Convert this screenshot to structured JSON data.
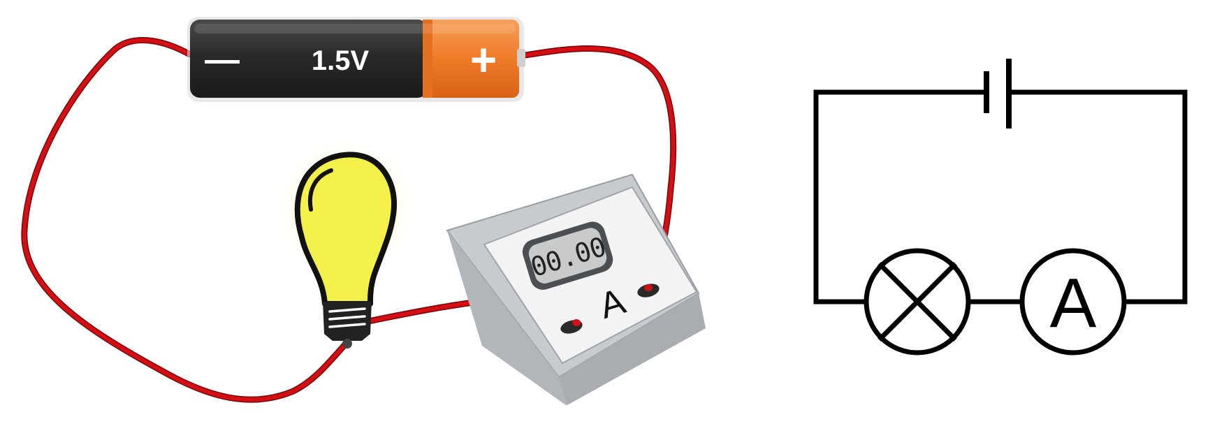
{
  "battery": {
    "minus_symbol": "—",
    "voltage_label": "1.5V",
    "plus_symbol": "+"
  },
  "ammeter": {
    "display_reading": "00.00",
    "unit_letter": "A"
  },
  "schematic": {
    "ammeter_symbol_letter": "A"
  },
  "colors": {
    "wire": "#d40f14",
    "battery_body": "#2b2b2b",
    "battery_cap": "#f07a2a",
    "bulb_glass": "#f4f04a",
    "meter_body": "#b9bcc0",
    "schematic_line": "#000000"
  }
}
